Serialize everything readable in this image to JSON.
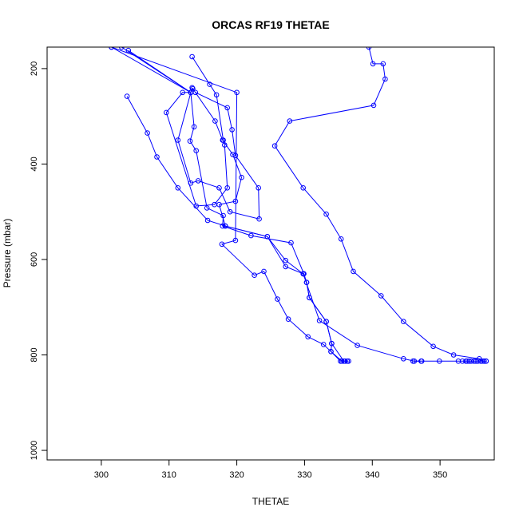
{
  "chart_data": {
    "type": "line",
    "title": "ORCAS RF19 THETAE",
    "xlabel": "THETAE",
    "ylabel": "Pressure (mbar)",
    "xlim": [
      292,
      358
    ],
    "ylim": [
      1020,
      155
    ],
    "y_inverted": true,
    "grid": false,
    "legend": "none",
    "xticks": [
      300,
      310,
      320,
      330,
      340,
      350
    ],
    "yticks": [
      200,
      400,
      600,
      800,
      1000
    ],
    "colors": {
      "series": "#0000ff",
      "axis": "#000000",
      "background": "#ffffff"
    },
    "series": [
      {
        "values": [
          [
            301.5,
            155
          ],
          [
            313.2,
            250
          ],
          [
            313.7,
            322
          ],
          [
            313.1,
            352
          ],
          [
            314.0,
            372
          ],
          [
            315.6,
            492
          ],
          [
            318.0,
            508
          ],
          [
            317.9,
            530
          ],
          [
            322.1,
            550
          ],
          [
            328.0,
            565
          ],
          [
            329.9,
            630
          ],
          [
            330.3,
            648
          ],
          [
            330.7,
            680
          ],
          [
            333.2,
            730
          ],
          [
            334.0,
            776
          ],
          [
            333.9,
            793
          ],
          [
            335.3,
            813
          ],
          [
            336.0,
            813
          ],
          [
            336.5,
            813
          ]
        ]
      },
      {
        "values": [
          [
            304.0,
            162
          ],
          [
            313.2,
            250
          ],
          [
            313.5,
            242
          ],
          [
            316.8,
            310
          ],
          [
            317.9,
            350
          ],
          [
            319.4,
            380
          ],
          [
            320.7,
            428
          ],
          [
            319.8,
            478
          ],
          [
            317.4,
            485
          ],
          [
            318.3,
            530
          ],
          [
            324.5,
            552
          ],
          [
            327.2,
            602
          ],
          [
            329.8,
            630
          ],
          [
            332.2,
            728
          ],
          [
            337.8,
            780
          ],
          [
            344.6,
            808
          ],
          [
            346.2,
            813
          ],
          [
            347.2,
            813
          ]
        ]
      },
      {
        "values": [
          [
            303.8,
            258
          ],
          [
            306.8,
            335
          ],
          [
            308.2,
            385
          ],
          [
            311.3,
            450
          ],
          [
            315.7,
            518
          ],
          [
            318.3,
            530
          ],
          [
            324.5,
            552
          ],
          [
            327.2,
            615
          ],
          [
            329.8,
            630
          ],
          [
            330.3,
            648
          ],
          [
            330.7,
            680
          ],
          [
            333.2,
            730
          ],
          [
            334.0,
            776
          ],
          [
            335.8,
            813
          ],
          [
            336.3,
            813
          ]
        ]
      },
      {
        "values": [
          [
            313.4,
            240
          ],
          [
            311.3,
            350
          ],
          [
            313.2,
            440
          ],
          [
            314.3,
            435
          ],
          [
            317.4,
            450
          ],
          [
            319.0,
            500
          ],
          [
            323.3,
            515
          ],
          [
            323.2,
            450
          ],
          [
            319.8,
            382
          ],
          [
            319.3,
            328
          ],
          [
            318.6,
            282
          ],
          [
            313.9,
            250
          ]
        ]
      },
      {
        "values": [
          [
            313.4,
            175
          ],
          [
            316.0,
            233
          ],
          [
            317.0,
            255
          ],
          [
            318.0,
            350
          ],
          [
            318.2,
            360
          ],
          [
            318.6,
            450
          ],
          [
            316.7,
            485
          ],
          [
            314.0,
            488
          ],
          [
            309.6,
            292
          ],
          [
            312.0,
            250
          ],
          [
            313.2,
            250
          ]
        ]
      },
      {
        "values": [
          [
            301.5,
            155
          ],
          [
            320.0,
            250
          ],
          [
            319.8,
            560
          ],
          [
            317.8,
            568
          ],
          [
            322.6,
            633
          ],
          [
            324.0,
            625
          ],
          [
            326.0,
            683
          ],
          [
            327.6,
            725
          ],
          [
            330.5,
            762
          ],
          [
            332.8,
            778
          ],
          [
            333.9,
            793
          ],
          [
            335.5,
            813
          ]
        ]
      },
      {
        "values": [
          [
            303.0,
            155
          ],
          [
            313.2,
            250
          ]
        ]
      },
      {
        "values": [
          [
            339.5,
            155
          ],
          [
            340.1,
            190
          ],
          [
            341.6,
            190
          ],
          [
            341.9,
            222
          ],
          [
            340.2,
            277
          ],
          [
            327.8,
            310
          ],
          [
            325.6,
            362
          ],
          [
            329.8,
            450
          ],
          [
            333.2,
            505
          ],
          [
            335.4,
            557
          ],
          [
            337.2,
            625
          ],
          [
            341.3,
            676
          ],
          [
            344.6,
            730
          ],
          [
            349.0,
            782
          ],
          [
            352.0,
            800
          ],
          [
            355.8,
            808
          ],
          [
            356.2,
            813
          ],
          [
            356.5,
            813
          ],
          [
            356.8,
            813
          ]
        ]
      },
      {
        "values": [
          [
            346.0,
            813
          ],
          [
            347.3,
            813
          ],
          [
            349.9,
            813
          ],
          [
            352.7,
            813
          ],
          [
            353.3,
            813
          ],
          [
            353.8,
            813
          ],
          [
            354.0,
            813
          ],
          [
            354.3,
            813
          ],
          [
            354.6,
            813
          ],
          [
            355.0,
            813
          ],
          [
            355.3,
            813
          ],
          [
            355.6,
            813
          ],
          [
            356.0,
            813
          ],
          [
            356.5,
            813
          ],
          [
            356.8,
            813
          ]
        ]
      }
    ]
  }
}
